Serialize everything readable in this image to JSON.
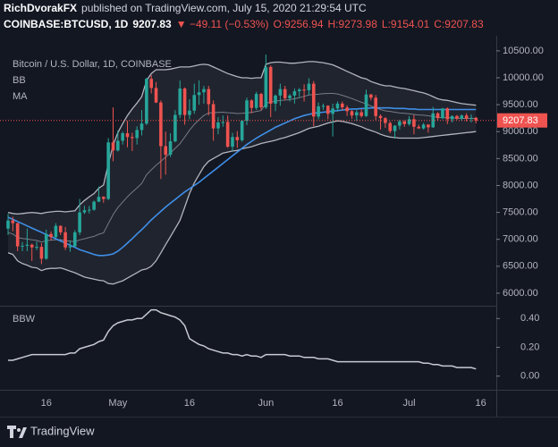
{
  "header": {
    "author": "RichDvorakFX",
    "published": "published on TradingView.com, July 15, 2020 21:29:54 UTC",
    "symbol": "COINBASE:BTCUSD, 1D",
    "last": "9207.83",
    "change": "▼ −49.11 (−0.53%)",
    "ohlc": [
      "O:9256.94",
      "H:9273.98",
      "L:9154.01",
      "C:9207.83"
    ]
  },
  "footer": {
    "brand": "TradingView"
  },
  "chart_data": {
    "type": "candlestick",
    "legend": "Bitcoin / U.S. Dollar, 1D, COINBASE",
    "up_color": "#26a69a",
    "down_color": "#ef5350",
    "grid": false,
    "categories": [
      null,
      null,
      null,
      null,
      null,
      null,
      null,
      null,
      "16",
      null,
      null,
      null,
      null,
      null,
      null,
      null,
      null,
      null,
      null,
      null,
      null,
      null,
      null,
      "May",
      null,
      null,
      null,
      null,
      null,
      null,
      null,
      null,
      null,
      null,
      null,
      null,
      null,
      null,
      "16",
      null,
      null,
      null,
      null,
      null,
      null,
      null,
      null,
      null,
      null,
      null,
      null,
      null,
      null,
      null,
      "Jun",
      null,
      null,
      null,
      null,
      null,
      null,
      null,
      null,
      null,
      null,
      null,
      null,
      null,
      null,
      "16",
      null,
      null,
      null,
      null,
      null,
      null,
      null,
      null,
      null,
      null,
      null,
      null,
      null,
      null,
      "Jul",
      null,
      null,
      null,
      null,
      null,
      null,
      null,
      null,
      null,
      null,
      null,
      null,
      null,
      null,
      "16"
    ],
    "open": [
      7200,
      7350,
      7300,
      6870,
      6880,
      6900,
      6850,
      6860,
      6640,
      7100,
      7040,
      7250,
      7130,
      6850,
      6870,
      7130,
      7500,
      7540,
      7550,
      7700,
      7790,
      7750,
      8800,
      8650,
      8830,
      8970,
      8900,
      8880,
      9030,
      9150,
      9980,
      9810,
      9540,
      8730,
      8570,
      8820,
      9310,
      9800,
      9310,
      9390,
      9680,
      9730,
      9790,
      9510,
      9060,
      9170,
      9180,
      8720,
      8900,
      8840,
      9200,
      9580,
      9440,
      9700,
      9450,
      10200,
      9520,
      9670,
      9790,
      9620,
      9670,
      9750,
      9780,
      9770,
      9890,
      9280,
      9470,
      9480,
      9330,
      9430,
      9520,
      9450,
      9380,
      9300,
      9360,
      9290,
      9690,
      9630,
      9290,
      9250,
      9160,
      9010,
      9110,
      9190,
      9140,
      9230,
      9090,
      9060,
      9130,
      9080,
      9340,
      9250,
      9430,
      9230,
      9290,
      9240,
      9300,
      9240,
      9256.94,
      null
    ],
    "high": [
      7470,
      7420,
      7310,
      6950,
      7200,
      6920,
      6960,
      6930,
      7180,
      7150,
      7300,
      7260,
      7230,
      6980,
      7170,
      7750,
      7620,
      7620,
      7720,
      7980,
      7800,
      8880,
      9450,
      9020,
      9000,
      9200,
      8980,
      9100,
      9400,
      10000,
      10050,
      9920,
      9580,
      9000,
      8970,
      9400,
      9950,
      9820,
      9600,
      9890,
      9950,
      9850,
      9850,
      9580,
      9270,
      9300,
      9300,
      8980,
      9010,
      9220,
      9630,
      9600,
      9740,
      9720,
      10430,
      10230,
      9690,
      9890,
      9850,
      9700,
      9800,
      9810,
      9880,
      9990,
      9940,
      9540,
      9520,
      9490,
      9520,
      9560,
      9560,
      9490,
      9400,
      9400,
      9420,
      9780,
      9700,
      9680,
      9320,
      9270,
      9190,
      9120,
      9220,
      9210,
      9290,
      9310,
      9130,
      9160,
      9140,
      9460,
      9360,
      9440,
      9450,
      9300,
      9310,
      9320,
      9340,
      9320,
      9273.98,
      null
    ],
    "low": [
      7080,
      7150,
      6780,
      6780,
      6780,
      6600,
      6800,
      6540,
      6620,
      6980,
      7020,
      7080,
      6800,
      6770,
      6850,
      7080,
      7470,
      7480,
      7530,
      7690,
      7680,
      7730,
      8450,
      8630,
      8760,
      8710,
      8640,
      8760,
      8930,
      9120,
      9710,
      9530,
      8120,
      8200,
      8530,
      8800,
      9250,
      9130,
      9230,
      9330,
      9500,
      9520,
      9300,
      8830,
      8950,
      9090,
      8700,
      8640,
      8700,
      8810,
      9120,
      9340,
      9400,
      9400,
      9420,
      9270,
      9380,
      9480,
      9580,
      9560,
      9520,
      9640,
      9560,
      9680,
      9100,
      9230,
      9400,
      9230,
      8910,
      9370,
      9400,
      9290,
      9240,
      9200,
      9260,
      9270,
      9580,
      9220,
      9040,
      9070,
      8970,
      8870,
      9040,
      9090,
      9110,
      8950,
      9050,
      9040,
      8980,
      9070,
      9210,
      9230,
      9140,
      9170,
      9220,
      9200,
      9190,
      9170,
      9154.01,
      null
    ],
    "close": [
      7350,
      7300,
      6870,
      6880,
      6900,
      6850,
      6860,
      6640,
      7100,
      7040,
      7250,
      7130,
      6850,
      6870,
      7130,
      7500,
      7540,
      7550,
      7700,
      7790,
      7750,
      8800,
      8650,
      8830,
      8970,
      8900,
      8880,
      9030,
      9150,
      9980,
      9810,
      9540,
      8730,
      8570,
      8820,
      9310,
      9800,
      9310,
      9390,
      9680,
      9730,
      9790,
      9510,
      9060,
      9170,
      9180,
      8720,
      8900,
      8840,
      9200,
      9580,
      9440,
      9700,
      9450,
      10200,
      9520,
      9670,
      9790,
      9620,
      9670,
      9750,
      9780,
      9770,
      9890,
      9280,
      9470,
      9480,
      9330,
      9430,
      9520,
      9450,
      9380,
      9300,
      9360,
      9290,
      9690,
      9630,
      9290,
      9250,
      9160,
      9010,
      9110,
      9190,
      9140,
      9230,
      9090,
      9060,
      9130,
      9080,
      9340,
      9250,
      9430,
      9230,
      9290,
      9240,
      9300,
      9240,
      9256.94,
      9207.83,
      null
    ],
    "bb": {
      "name": "BB",
      "color": "#b2b5be",
      "basis_color": "#787b86",
      "fill": "rgba(120,123,134,0.13)",
      "upper": [
        7500,
        7480,
        7470,
        7480,
        7490,
        7500,
        7490,
        7480,
        7500,
        7510,
        7520,
        7520,
        7510,
        7520,
        7530,
        7640,
        7720,
        7790,
        7850,
        7950,
        8010,
        8400,
        8750,
        8980,
        9150,
        9300,
        9420,
        9530,
        9650,
        9950,
        10080,
        10150,
        10150,
        10150,
        10160,
        10180,
        10200,
        10200,
        10200,
        10220,
        10240,
        10250,
        10240,
        10200,
        10160,
        10120,
        10080,
        10050,
        10020,
        10000,
        10000,
        9990,
        10000,
        10000,
        10250,
        10280,
        10290,
        10290,
        10280,
        10270,
        10270,
        10280,
        10290,
        10300,
        10300,
        10290,
        10280,
        10260,
        10240,
        10200,
        10160,
        10120,
        10080,
        10040,
        10000,
        9980,
        9930,
        9900,
        9870,
        9850,
        9850,
        9830,
        9810,
        9800,
        9780,
        9760,
        9740,
        9720,
        9690,
        9650,
        9610,
        9590,
        9580,
        9560,
        9540,
        9520,
        9510,
        9500,
        9490,
        null
      ],
      "basis": [
        7125,
        7100,
        7035,
        7015,
        7005,
        6990,
        6980,
        6950,
        6975,
        6985,
        6990,
        6995,
        6975,
        6965,
        6955,
        6990,
        7010,
        7035,
        7055,
        7095,
        7120,
        7290,
        7460,
        7590,
        7690,
        7790,
        7875,
        7955,
        8040,
        8200,
        8290,
        8375,
        8450,
        8525,
        8605,
        8690,
        8775,
        8900,
        9025,
        9135,
        9220,
        9300,
        9345,
        9350,
        9355,
        9360,
        9350,
        9345,
        9335,
        9340,
        9350,
        9355,
        9375,
        9390,
        9525,
        9550,
        9565,
        9580,
        9585,
        9595,
        9610,
        9630,
        9655,
        9680,
        9690,
        9695,
        9705,
        9710,
        9710,
        9700,
        9675,
        9645,
        9615,
        9580,
        9545,
        9515,
        9475,
        9445,
        9410,
        9385,
        9375,
        9360,
        9345,
        9340,
        9330,
        9320,
        9310,
        9305,
        9295,
        9280,
        9265,
        9260,
        9260,
        9255,
        9250,
        9245,
        9245,
        9245,
        9245,
        null
      ],
      "lower": [
        6750,
        6720,
        6600,
        6550,
        6520,
        6480,
        6470,
        6420,
        6450,
        6460,
        6460,
        6470,
        6440,
        6410,
        6380,
        6340,
        6300,
        6280,
        6260,
        6240,
        6230,
        6180,
        6170,
        6200,
        6230,
        6280,
        6330,
        6380,
        6430,
        6450,
        6500,
        6600,
        6750,
        6900,
        7050,
        7200,
        7350,
        7600,
        7850,
        8050,
        8200,
        8350,
        8450,
        8500,
        8550,
        8600,
        8620,
        8640,
        8650,
        8680,
        8700,
        8720,
        8750,
        8780,
        8800,
        8820,
        8840,
        8870,
        8890,
        8920,
        8950,
        8980,
        9020,
        9060,
        9080,
        9100,
        9130,
        9160,
        9180,
        9200,
        9190,
        9170,
        9150,
        9120,
        9090,
        9050,
        9020,
        8990,
        8950,
        8920,
        8900,
        8890,
        8880,
        8880,
        8880,
        8880,
        8880,
        8890,
        8900,
        8910,
        8920,
        8930,
        8940,
        8950,
        8960,
        8970,
        8980,
        8990,
        9000,
        null
      ]
    },
    "ma": {
      "name": "MA",
      "color": "#3f8fe8",
      "values": [
        7410,
        7370,
        7330,
        7290,
        7250,
        7210,
        7170,
        7130,
        7090,
        7050,
        7010,
        6970,
        6930,
        6890,
        6850,
        6810,
        6780,
        6750,
        6720,
        6700,
        6700,
        6710,
        6730,
        6780,
        6850,
        6930,
        7010,
        7100,
        7180,
        7270,
        7360,
        7440,
        7520,
        7600,
        7670,
        7740,
        7810,
        7880,
        7940,
        8000,
        8060,
        8130,
        8200,
        8270,
        8340,
        8410,
        8480,
        8550,
        8620,
        8690,
        8760,
        8820,
        8880,
        8930,
        8980,
        9030,
        9080,
        9120,
        9160,
        9200,
        9240,
        9270,
        9300,
        9320,
        9340,
        9350,
        9360,
        9370,
        9380,
        9390,
        9400,
        9410,
        9420,
        9420,
        9430,
        9430,
        9440,
        9440,
        9440,
        9440,
        9440,
        9430,
        9430,
        9430,
        9420,
        9420,
        9410,
        9410,
        9410,
        9410,
        9410,
        9410,
        9410,
        9410,
        9410,
        9410,
        9410,
        9410,
        9410,
        null
      ]
    },
    "ylim": [
      5800,
      10780
    ],
    "yticks": [
      {
        "value": 6000,
        "label": "6000.00"
      },
      {
        "value": 6500,
        "label": "6500.00"
      },
      {
        "value": 7000,
        "label": "7000.00"
      },
      {
        "value": 7500,
        "label": "7500.00"
      },
      {
        "value": 8000,
        "label": "8000.00"
      },
      {
        "value": 8500,
        "label": "8500.00"
      },
      {
        "value": 9000,
        "label": "9000.00"
      },
      {
        "value": 9500,
        "label": "9500.00"
      },
      {
        "value": 10000,
        "label": "10000.00"
      },
      {
        "value": 10500,
        "label": "10500.00"
      }
    ],
    "bbw": {
      "name": "BBW",
      "color": "#c8cad2",
      "values": [
        0.11,
        0.11,
        0.12,
        0.13,
        0.14,
        0.15,
        0.15,
        0.15,
        0.15,
        0.15,
        0.15,
        0.15,
        0.15,
        0.16,
        0.16,
        0.19,
        0.2,
        0.21,
        0.22,
        0.24,
        0.25,
        0.31,
        0.35,
        0.37,
        0.38,
        0.39,
        0.39,
        0.4,
        0.4,
        0.43,
        0.46,
        0.46,
        0.44,
        0.43,
        0.42,
        0.41,
        0.39,
        0.35,
        0.26,
        0.24,
        0.22,
        0.21,
        0.19,
        0.18,
        0.17,
        0.16,
        0.16,
        0.15,
        0.15,
        0.14,
        0.15,
        0.14,
        0.14,
        0.13,
        0.15,
        0.15,
        0.15,
        0.15,
        0.15,
        0.14,
        0.14,
        0.14,
        0.13,
        0.13,
        0.13,
        0.12,
        0.12,
        0.12,
        0.11,
        0.1,
        0.1,
        0.1,
        0.1,
        0.1,
        0.1,
        0.1,
        0.1,
        0.1,
        0.1,
        0.1,
        0.1,
        0.1,
        0.1,
        0.1,
        0.1,
        0.1,
        0.1,
        0.09,
        0.09,
        0.08,
        0.08,
        0.07,
        0.07,
        0.07,
        0.06,
        0.06,
        0.06,
        0.06,
        0.05,
        null
      ],
      "ylim": [
        -0.07,
        0.47
      ],
      "yticks": [
        {
          "value": 0,
          "label": "0.00"
        },
        {
          "value": 0.2,
          "label": "0.20"
        },
        {
          "value": 0.4,
          "label": "0.40"
        }
      ]
    }
  }
}
